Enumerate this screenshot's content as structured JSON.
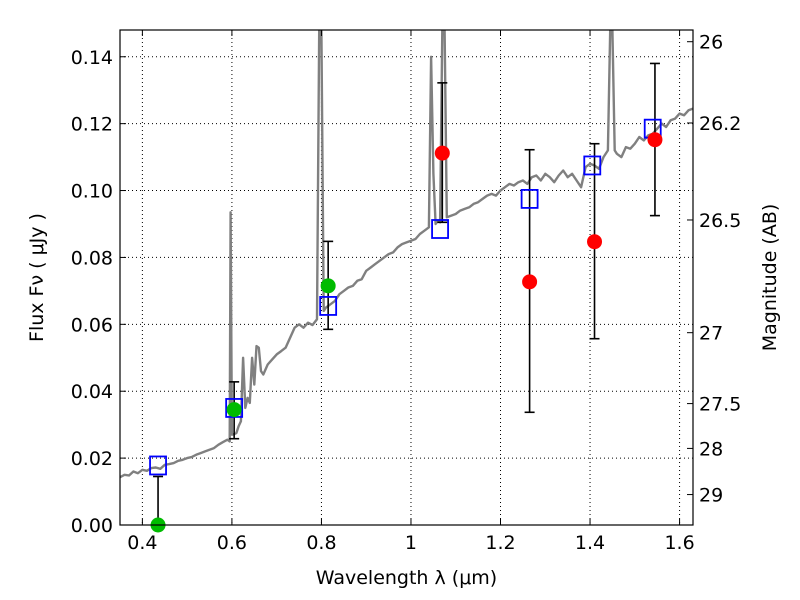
{
  "chart_data": {
    "type": "scatter",
    "xlabel": "Wavelength  λ (μm)",
    "ylabel": "Flux  Fν  ( μJy )",
    "ylabel_right": "Magnitude (AB)",
    "xlim": [
      0.35,
      1.63
    ],
    "ylim": [
      0.0,
      0.148
    ],
    "grid": true,
    "x_ticks": [
      {
        "value": 0.4,
        "label": "0.4"
      },
      {
        "value": 0.6,
        "label": "0.6"
      },
      {
        "value": 0.8,
        "label": "0.8"
      },
      {
        "value": 1.0,
        "label": "1"
      },
      {
        "value": 1.2,
        "label": "1.2"
      },
      {
        "value": 1.4,
        "label": "1.4"
      },
      {
        "value": 1.6,
        "label": "1.6"
      }
    ],
    "y_ticks": [
      {
        "value": 0.0,
        "label": "0.00"
      },
      {
        "value": 0.02,
        "label": "0.02"
      },
      {
        "value": 0.04,
        "label": "0.04"
      },
      {
        "value": 0.06,
        "label": "0.06"
      },
      {
        "value": 0.08,
        "label": "0.08"
      },
      {
        "value": 0.1,
        "label": "0.10"
      },
      {
        "value": 0.12,
        "label": "0.12"
      },
      {
        "value": 0.14,
        "label": "0.14"
      }
    ],
    "y_right_ticks": [
      {
        "flux": 0.1445,
        "label": "26"
      },
      {
        "flux": 0.1202,
        "label": "26.2"
      },
      {
        "flux": 0.0912,
        "label": "26.5"
      },
      {
        "flux": 0.0575,
        "label": "27"
      },
      {
        "flux": 0.0363,
        "label": "27.5"
      },
      {
        "flux": 0.0229,
        "label": "28"
      },
      {
        "flux": 0.0091,
        "label": "29"
      }
    ],
    "series": [
      {
        "kind": "line",
        "color": "#808080",
        "points": [
          [
            0.35,
            0.0143
          ],
          [
            0.36,
            0.015
          ],
          [
            0.37,
            0.0148
          ],
          [
            0.38,
            0.016
          ],
          [
            0.39,
            0.0155
          ],
          [
            0.4,
            0.0165
          ],
          [
            0.41,
            0.0162
          ],
          [
            0.42,
            0.017
          ],
          [
            0.43,
            0.0172
          ],
          [
            0.44,
            0.0168
          ],
          [
            0.45,
            0.018
          ],
          [
            0.46,
            0.0182
          ],
          [
            0.47,
            0.0185
          ],
          [
            0.48,
            0.0192
          ],
          [
            0.49,
            0.0195
          ],
          [
            0.5,
            0.02
          ],
          [
            0.51,
            0.0203
          ],
          [
            0.52,
            0.021
          ],
          [
            0.53,
            0.0215
          ],
          [
            0.54,
            0.022
          ],
          [
            0.55,
            0.0225
          ],
          [
            0.56,
            0.023
          ],
          [
            0.57,
            0.024
          ],
          [
            0.58,
            0.0248
          ],
          [
            0.59,
            0.0255
          ],
          [
            0.595,
            0.025
          ],
          [
            0.597,
            0.0935
          ],
          [
            0.6,
            0.027
          ],
          [
            0.605,
            0.0272
          ],
          [
            0.61,
            0.0275
          ],
          [
            0.615,
            0.0295
          ],
          [
            0.62,
            0.031
          ],
          [
            0.625,
            0.05
          ],
          [
            0.63,
            0.035
          ],
          [
            0.635,
            0.038
          ],
          [
            0.64,
            0.0365
          ],
          [
            0.645,
            0.05
          ],
          [
            0.65,
            0.042
          ],
          [
            0.655,
            0.0535
          ],
          [
            0.66,
            0.053
          ],
          [
            0.665,
            0.046
          ],
          [
            0.67,
            0.045
          ],
          [
            0.68,
            0.048
          ],
          [
            0.69,
            0.0495
          ],
          [
            0.7,
            0.051
          ],
          [
            0.71,
            0.052
          ],
          [
            0.72,
            0.053
          ],
          [
            0.73,
            0.056
          ],
          [
            0.74,
            0.059
          ],
          [
            0.75,
            0.06
          ],
          [
            0.76,
            0.059
          ],
          [
            0.77,
            0.0605
          ],
          [
            0.78,
            0.0598
          ],
          [
            0.79,
            0.0615
          ],
          [
            0.795,
            0.148
          ],
          [
            0.8,
            0.148
          ],
          [
            0.805,
            0.064
          ],
          [
            0.81,
            0.065
          ],
          [
            0.82,
            0.066
          ],
          [
            0.83,
            0.067
          ],
          [
            0.84,
            0.069
          ],
          [
            0.85,
            0.07
          ],
          [
            0.86,
            0.071
          ],
          [
            0.87,
            0.0715
          ],
          [
            0.88,
            0.073
          ],
          [
            0.89,
            0.0735
          ],
          [
            0.9,
            0.076
          ],
          [
            0.91,
            0.077
          ],
          [
            0.92,
            0.078
          ],
          [
            0.93,
            0.079
          ],
          [
            0.94,
            0.08
          ],
          [
            0.95,
            0.081
          ],
          [
            0.96,
            0.0815
          ],
          [
            0.97,
            0.083
          ],
          [
            0.98,
            0.084
          ],
          [
            0.99,
            0.0845
          ],
          [
            1.0,
            0.085
          ],
          [
            1.01,
            0.0855
          ],
          [
            1.02,
            0.087
          ],
          [
            1.03,
            0.088
          ],
          [
            1.04,
            0.089
          ],
          [
            1.045,
            0.14
          ],
          [
            1.05,
            0.105
          ],
          [
            1.055,
            0.09
          ],
          [
            1.06,
            0.091
          ],
          [
            1.065,
            0.0905
          ],
          [
            1.07,
            0.148
          ],
          [
            1.075,
            0.148
          ],
          [
            1.08,
            0.092
          ],
          [
            1.09,
            0.0925
          ],
          [
            1.1,
            0.093
          ],
          [
            1.11,
            0.094
          ],
          [
            1.12,
            0.0945
          ],
          [
            1.13,
            0.095
          ],
          [
            1.14,
            0.096
          ],
          [
            1.15,
            0.0965
          ],
          [
            1.16,
            0.0975
          ],
          [
            1.17,
            0.0985
          ],
          [
            1.18,
            0.099
          ],
          [
            1.19,
            0.0985
          ],
          [
            1.2,
            0.1
          ],
          [
            1.21,
            0.101
          ],
          [
            1.22,
            0.102
          ],
          [
            1.23,
            0.1015
          ],
          [
            1.24,
            0.1025
          ],
          [
            1.25,
            0.103
          ],
          [
            1.26,
            0.102
          ],
          [
            1.27,
            0.104
          ],
          [
            1.28,
            0.1045
          ],
          [
            1.29,
            0.103
          ],
          [
            1.3,
            0.105
          ],
          [
            1.31,
            0.104
          ],
          [
            1.32,
            0.1025
          ],
          [
            1.33,
            0.1045
          ],
          [
            1.34,
            0.106
          ],
          [
            1.35,
            0.104
          ],
          [
            1.36,
            0.105
          ],
          [
            1.37,
            0.103
          ],
          [
            1.38,
            0.101
          ],
          [
            1.39,
            0.107
          ],
          [
            1.4,
            0.108
          ],
          [
            1.41,
            0.1075
          ],
          [
            1.42,
            0.1065
          ],
          [
            1.43,
            0.11
          ],
          [
            1.44,
            0.112
          ],
          [
            1.445,
            0.148
          ],
          [
            1.45,
            0.148
          ],
          [
            1.455,
            0.112
          ],
          [
            1.46,
            0.111
          ],
          [
            1.47,
            0.11
          ],
          [
            1.48,
            0.113
          ],
          [
            1.49,
            0.1125
          ],
          [
            1.5,
            0.114
          ],
          [
            1.51,
            0.116
          ],
          [
            1.52,
            0.115
          ],
          [
            1.53,
            0.1165
          ],
          [
            1.54,
            0.117
          ],
          [
            1.55,
            0.1185
          ],
          [
            1.56,
            0.12
          ],
          [
            1.57,
            0.119
          ],
          [
            1.58,
            0.121
          ],
          [
            1.59,
            0.1215
          ],
          [
            1.6,
            0.123
          ],
          [
            1.61,
            0.1225
          ],
          [
            1.62,
            0.124
          ],
          [
            1.63,
            0.1245
          ]
        ]
      },
      {
        "kind": "open-squares",
        "color": "#0000ff",
        "points": [
          [
            0.435,
            0.0178
          ],
          [
            0.605,
            0.035
          ],
          [
            0.815,
            0.0655
          ],
          [
            1.065,
            0.0885
          ],
          [
            1.265,
            0.0975
          ],
          [
            1.405,
            0.1075
          ],
          [
            1.54,
            0.1185
          ]
        ]
      },
      {
        "kind": "points",
        "color": "#00bb00",
        "points": [
          [
            0.435,
            0.0
          ],
          [
            0.605,
            0.0345
          ],
          [
            0.815,
            0.0715
          ]
        ]
      },
      {
        "kind": "points",
        "color": "#ff0000",
        "points": [
          [
            1.07,
            0.1112
          ],
          [
            1.265,
            0.0727
          ],
          [
            1.41,
            0.0847
          ],
          [
            1.545,
            0.1152
          ]
        ]
      },
      {
        "kind": "errorbars",
        "color": "#000000",
        "bars": [
          {
            "x": 0.435,
            "low": 0.0,
            "high": 0.0145
          },
          {
            "x": 0.605,
            "low": 0.0258,
            "high": 0.0428
          },
          {
            "x": 0.815,
            "low": 0.0585,
            "high": 0.0848
          },
          {
            "x": 1.07,
            "low": 0.0905,
            "high": 0.1322
          },
          {
            "x": 1.265,
            "low": 0.0337,
            "high": 0.1122
          },
          {
            "x": 1.41,
            "low": 0.0557,
            "high": 0.114
          },
          {
            "x": 1.545,
            "low": 0.0925,
            "high": 0.138
          }
        ]
      }
    ]
  }
}
